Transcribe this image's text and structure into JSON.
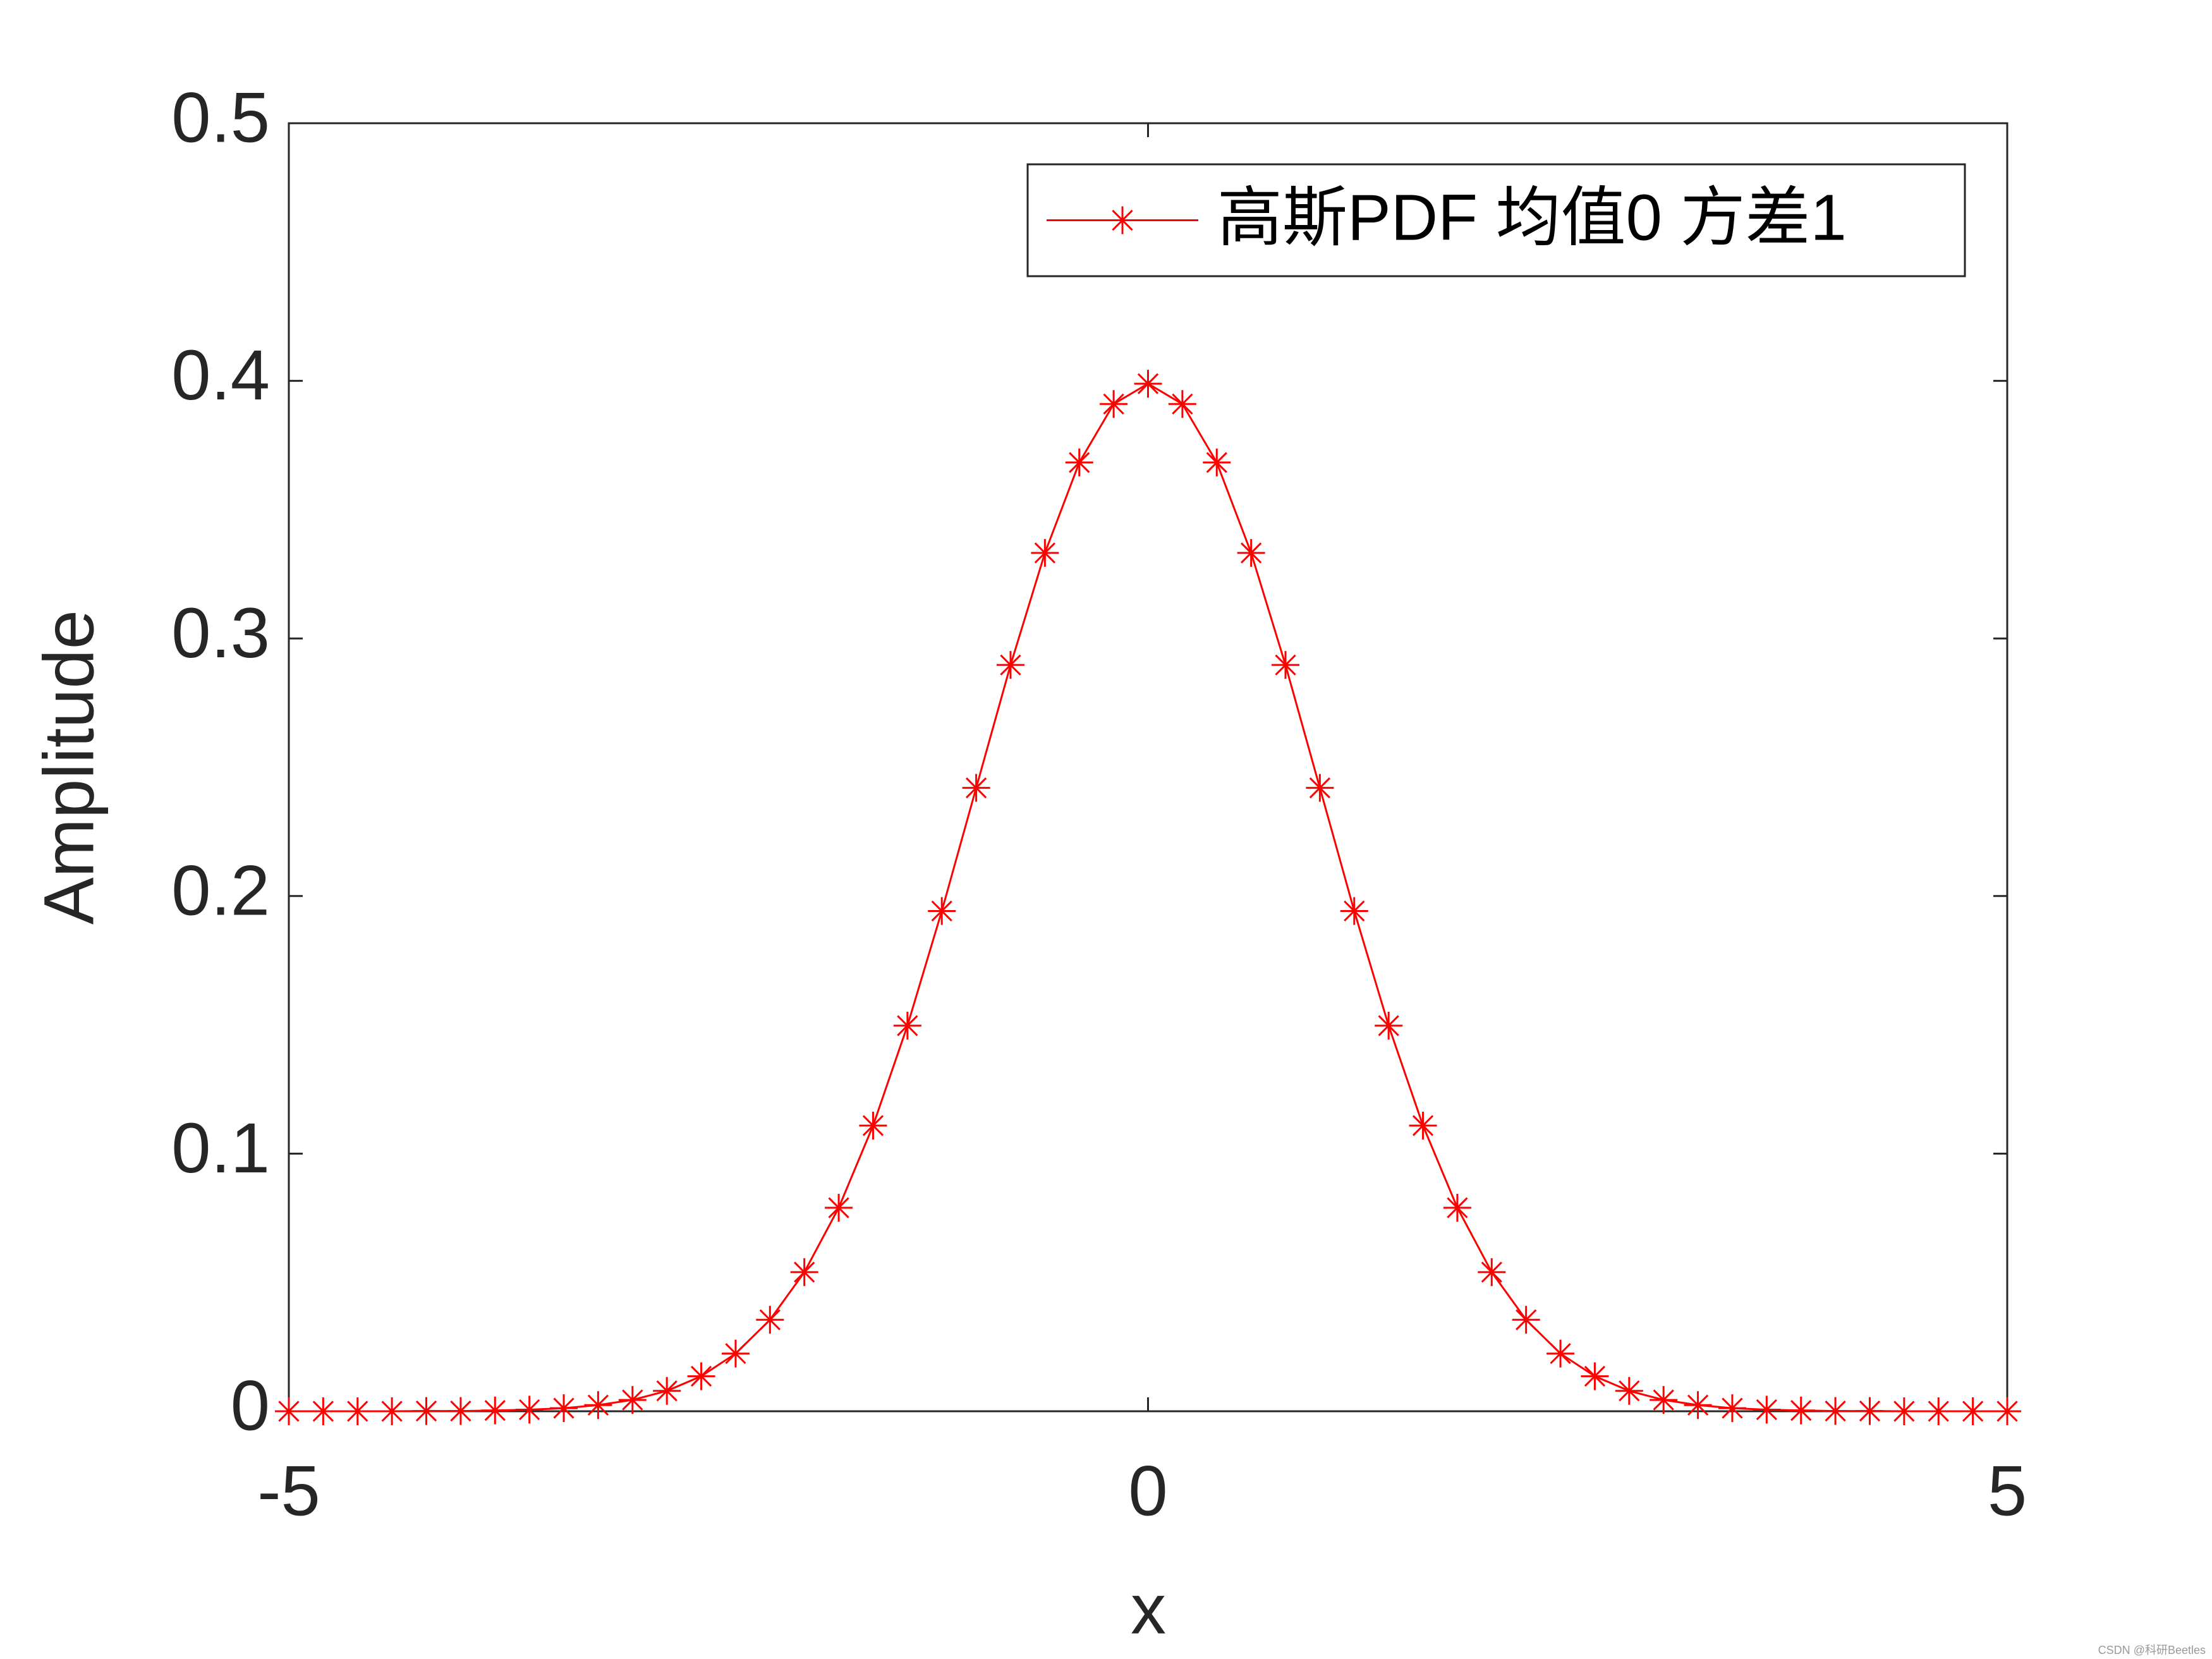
{
  "chart_data": {
    "type": "line",
    "xlabel": "x",
    "ylabel": "Amplitude",
    "x": [
      -5,
      -4.8,
      -4.6,
      -4.4,
      -4.2,
      -4,
      -3.8,
      -3.6,
      -3.4,
      -3.2,
      -3,
      -2.8,
      -2.6,
      -2.4,
      -2.2,
      -2,
      -1.8,
      -1.6,
      -1.4,
      -1.2,
      -1,
      -0.8,
      -0.6,
      -0.4,
      -0.2,
      0,
      0.2,
      0.4,
      0.6,
      0.8,
      1,
      1.2,
      1.4,
      1.6,
      1.8,
      2,
      2.2,
      2.4,
      2.6,
      2.8,
      3,
      3.2,
      3.4,
      3.6,
      3.8,
      4,
      4.2,
      4.4,
      4.6,
      4.8,
      5
    ],
    "series": [
      {
        "name": "高斯PDF 均值0 方差1",
        "color": "#ff0000",
        "marker": "asterisk",
        "values": [
          0,
          0,
          0,
          0,
          0.0001,
          0.0001,
          0.0003,
          0.0006,
          0.0012,
          0.0024,
          0.0044,
          0.0079,
          0.0136,
          0.0224,
          0.0355,
          0.054,
          0.079,
          0.1109,
          0.1497,
          0.1942,
          0.242,
          0.2897,
          0.3332,
          0.3683,
          0.391,
          0.3989,
          0.391,
          0.3683,
          0.3332,
          0.2897,
          0.242,
          0.1942,
          0.1497,
          0.1109,
          0.079,
          0.054,
          0.0355,
          0.0224,
          0.0136,
          0.0079,
          0.0044,
          0.0024,
          0.0012,
          0.0006,
          0.0003,
          0.0001,
          0.0001,
          0,
          0,
          0,
          0
        ]
      }
    ],
    "xlim": [
      -5,
      5
    ],
    "xticks": [
      -5,
      0,
      5
    ],
    "ylim": [
      0,
      0.5
    ],
    "yticks": [
      0,
      0.1,
      0.2,
      0.3,
      0.4,
      0.5
    ],
    "grid": false,
    "legend": "upper right",
    "watermark": "CSDN @科研Beetles"
  }
}
